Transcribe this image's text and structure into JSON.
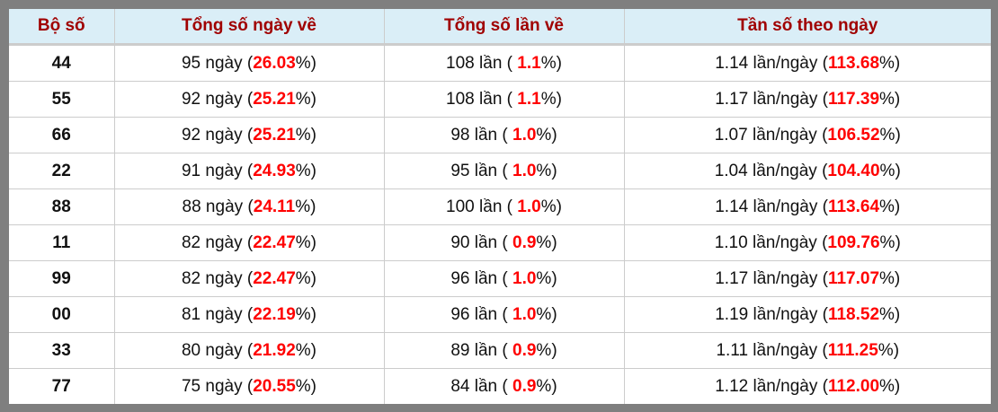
{
  "colors": {
    "header_bg": "#daeef7",
    "header_text": "#a00000",
    "highlight": "#ff0000",
    "frame": "#7f7f7f"
  },
  "headers": [
    "Bộ số",
    "Tổng số ngày về",
    "Tổng số lần về",
    "Tần số theo ngày"
  ],
  "rows": [
    {
      "bo_so": "44",
      "days": "95",
      "days_pct": "26.03",
      "times": "108",
      "times_pct": " 1.1",
      "freq": "1.14",
      "freq_pct": "113.68"
    },
    {
      "bo_so": "55",
      "days": "92",
      "days_pct": "25.21",
      "times": "108",
      "times_pct": " 1.1",
      "freq": "1.17",
      "freq_pct": "117.39"
    },
    {
      "bo_so": "66",
      "days": "92",
      "days_pct": "25.21",
      "times": "98",
      "times_pct": " 1.0",
      "freq": "1.07",
      "freq_pct": "106.52"
    },
    {
      "bo_so": "22",
      "days": "91",
      "days_pct": "24.93",
      "times": "95",
      "times_pct": " 1.0",
      "freq": "1.04",
      "freq_pct": "104.40"
    },
    {
      "bo_so": "88",
      "days": "88",
      "days_pct": "24.11",
      "times": "100",
      "times_pct": " 1.0",
      "freq": "1.14",
      "freq_pct": "113.64"
    },
    {
      "bo_so": "11",
      "days": "82",
      "days_pct": "22.47",
      "times": "90",
      "times_pct": " 0.9",
      "freq": "1.10",
      "freq_pct": "109.76"
    },
    {
      "bo_so": "99",
      "days": "82",
      "days_pct": "22.47",
      "times": "96",
      "times_pct": " 1.0",
      "freq": "1.17",
      "freq_pct": "117.07"
    },
    {
      "bo_so": "00",
      "days": "81",
      "days_pct": "22.19",
      "times": "96",
      "times_pct": " 1.0",
      "freq": "1.19",
      "freq_pct": "118.52"
    },
    {
      "bo_so": "33",
      "days": "80",
      "days_pct": "21.92",
      "times": "89",
      "times_pct": " 0.9",
      "freq": "1.11",
      "freq_pct": "111.25"
    },
    {
      "bo_so": "77",
      "days": "75",
      "days_pct": "20.55",
      "times": "84",
      "times_pct": " 0.9",
      "freq": "1.12",
      "freq_pct": "112.00"
    }
  ],
  "units": {
    "days": " ngày (",
    "times": " lần (",
    "freq": " lần/ngày (",
    "pct_close": "%)"
  }
}
